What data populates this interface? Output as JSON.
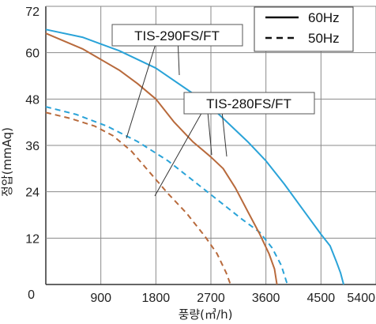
{
  "chart_data": {
    "type": "line",
    "title": "",
    "xlabel": "풍량(㎥/h)",
    "ylabel": "정압(mmAq)",
    "xlim": [
      0,
      5400
    ],
    "ylim": [
      0,
      72
    ],
    "x_ticks": [
      "0",
      "900",
      "1800",
      "2700",
      "3600",
      "4500",
      "5400"
    ],
    "y_ticks": [
      "0",
      "12",
      "24",
      "36",
      "48",
      "60",
      "72"
    ],
    "grid": true,
    "legend": {
      "position": "top-right",
      "entries": [
        {
          "label": "60Hz",
          "style": "solid"
        },
        {
          "label": "50Hz",
          "style": "dashed"
        }
      ]
    },
    "annotations": [
      {
        "text": "TIS-290FS/FT"
      },
      {
        "text": "TIS-280FS/FT"
      }
    ],
    "series": [
      {
        "group": "TIS-290FS/FT",
        "frequency": "60Hz",
        "color": "#2aa3d8",
        "dash": false,
        "points": [
          [
            0,
            66
          ],
          [
            600,
            64
          ],
          [
            1200,
            60.5
          ],
          [
            1800,
            56
          ],
          [
            2400,
            49.5
          ],
          [
            2700,
            46
          ],
          [
            3000,
            41.5
          ],
          [
            3300,
            37
          ],
          [
            3600,
            32
          ],
          [
            3900,
            26
          ],
          [
            4200,
            19.5
          ],
          [
            4500,
            13
          ],
          [
            4650,
            10
          ],
          [
            4750,
            6
          ],
          [
            4820,
            3
          ],
          [
            4870,
            0
          ]
        ]
      },
      {
        "group": "TIS-290FS/FT",
        "frequency": "50Hz",
        "color": "#2aa3d8",
        "dash": true,
        "points": [
          [
            0,
            46
          ],
          [
            500,
            44
          ],
          [
            1000,
            41
          ],
          [
            1500,
            37
          ],
          [
            2000,
            32
          ],
          [
            2400,
            27
          ],
          [
            2800,
            22
          ],
          [
            3200,
            17
          ],
          [
            3500,
            13.5
          ],
          [
            3700,
            9.5
          ],
          [
            3850,
            5
          ],
          [
            3950,
            0
          ]
        ]
      },
      {
        "group": "TIS-280FS/FT",
        "frequency": "60Hz",
        "color": "#b86a3c",
        "dash": false,
        "points": [
          [
            0,
            65
          ],
          [
            600,
            61
          ],
          [
            1200,
            55.5
          ],
          [
            1500,
            52
          ],
          [
            1800,
            48
          ],
          [
            2100,
            42
          ],
          [
            2400,
            37
          ],
          [
            2700,
            33
          ],
          [
            2900,
            30
          ],
          [
            3100,
            25
          ],
          [
            3300,
            19
          ],
          [
            3500,
            13
          ],
          [
            3650,
            8
          ],
          [
            3740,
            4
          ],
          [
            3780,
            0
          ]
        ]
      },
      {
        "group": "TIS-280FS/FT",
        "frequency": "50Hz",
        "color": "#b86a3c",
        "dash": true,
        "points": [
          [
            0,
            44.5
          ],
          [
            400,
            43
          ],
          [
            800,
            41
          ],
          [
            1100,
            38.5
          ],
          [
            1400,
            34.5
          ],
          [
            1700,
            29
          ],
          [
            2000,
            23.5
          ],
          [
            2300,
            18.5
          ],
          [
            2600,
            12.5
          ],
          [
            2800,
            8
          ],
          [
            2950,
            3
          ],
          [
            3020,
            0
          ]
        ]
      }
    ]
  }
}
